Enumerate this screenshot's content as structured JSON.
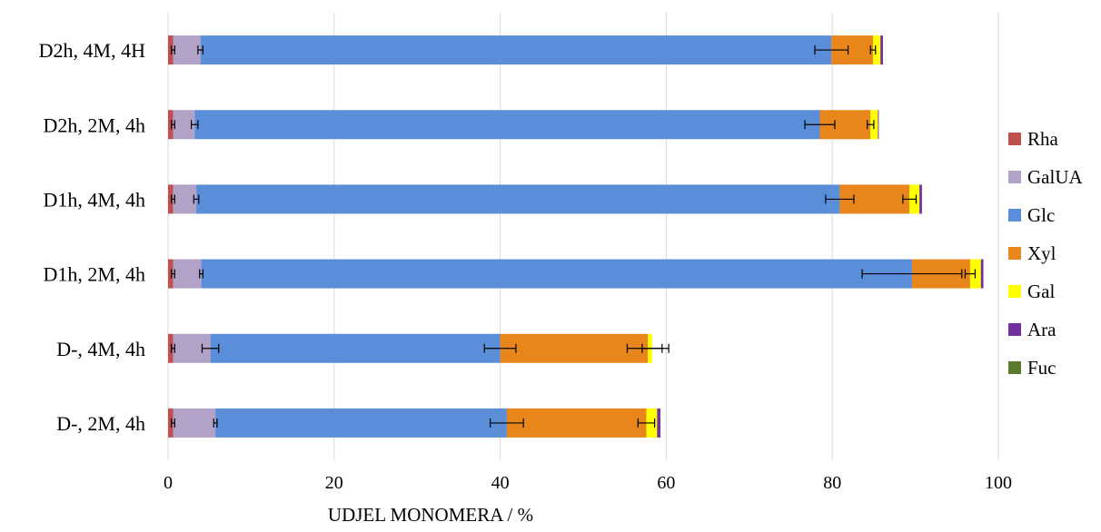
{
  "chart_data": {
    "type": "bar",
    "orientation": "horizontal",
    "stacked": true,
    "categories": [
      "D2h, 4M, 4H",
      "D2h, 2M, 4h",
      "D1h, 4M, 4h",
      "D1h, 2M, 4h",
      "D-, 4M, 4h",
      "D-, 2M, 4h"
    ],
    "series": [
      {
        "name": "Rha",
        "color": "#c0504d",
        "values": [
          0.6,
          0.6,
          0.6,
          0.6,
          0.6,
          0.6
        ],
        "errors": [
          0.2,
          0.2,
          0.2,
          0.2,
          0.2,
          0.2
        ]
      },
      {
        "name": "GalUA",
        "color": "#b3a2c7",
        "values": [
          3.3,
          2.6,
          2.8,
          3.4,
          4.5,
          5.1
        ],
        "errors": [
          0.3,
          0.4,
          0.3,
          0.2,
          1.0,
          0.2
        ]
      },
      {
        "name": "Glc",
        "color": "#5b8ed8",
        "values": [
          76.0,
          75.3,
          77.5,
          85.6,
          34.9,
          35.1
        ],
        "errors": [
          2.0,
          1.8,
          1.7,
          6.0,
          1.9,
          2.0
        ]
      },
      {
        "name": "Xyl",
        "color": "#e8861c",
        "values": [
          5.0,
          6.1,
          8.4,
          7.0,
          17.8,
          16.8
        ],
        "errors": [
          0.3,
          0.4,
          0.8,
          0.6,
          2.5,
          1.0
        ]
      },
      {
        "name": "Gal",
        "color": "#ffff00",
        "values": [
          0.9,
          0.9,
          1.2,
          1.3,
          0.5,
          1.3
        ],
        "errors": [
          0,
          0,
          0,
          0,
          1.2,
          0
        ]
      },
      {
        "name": "Ara",
        "color": "#7030a0",
        "values": [
          0.3,
          0.1,
          0.3,
          0.3,
          0.0,
          0.4
        ],
        "errors": [
          0,
          0,
          0,
          0,
          0,
          0
        ]
      },
      {
        "name": "Fuc",
        "color": "#5a7a2e",
        "values": [
          0.0,
          0.0,
          0.0,
          0.0,
          0.0,
          0.0
        ],
        "errors": [
          0,
          0,
          0,
          0,
          0,
          0
        ]
      }
    ],
    "xlim": [
      0,
      100
    ],
    "xticks": [
      0,
      20,
      40,
      60,
      80,
      100
    ],
    "xlabel": "UDJEL MONOMERA / %",
    "ylabel": "",
    "title": "",
    "grid": "vertical",
    "legend_position": "right",
    "colors": {
      "grid": "#d9d9d9",
      "error_bar": "#000000"
    }
  }
}
